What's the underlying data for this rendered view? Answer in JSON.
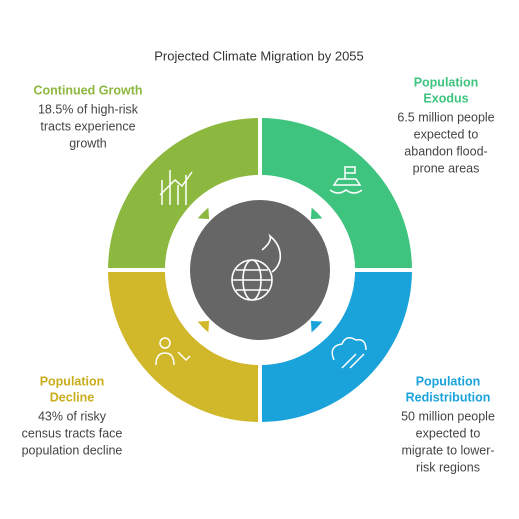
{
  "title": "Projected Climate Migration by 2055",
  "sections": [
    {
      "title_lines": [
        "Continued Growth"
      ],
      "description_lines": [
        "18.5% of high-risk",
        "tracts experience",
        "growth"
      ]
    },
    {
      "title_lines": [
        "Population",
        "Exodus"
      ],
      "description_lines": [
        "6.5 million people",
        "expected to",
        "abandon flood-",
        "prone areas"
      ]
    },
    {
      "title_lines": [
        "Population",
        "Redistribution"
      ],
      "description_lines": [
        "50 million people",
        "expected to",
        "migrate to lower-",
        "risk regions"
      ]
    },
    {
      "title_lines": [
        "Population",
        "Decline"
      ],
      "description_lines": [
        "43% of risky",
        "census tracts face",
        "population decline"
      ]
    }
  ]
}
